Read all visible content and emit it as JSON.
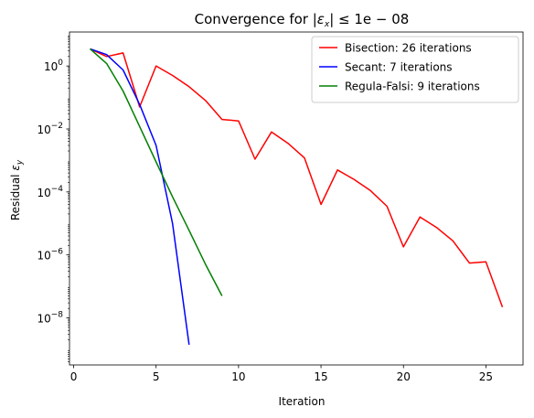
{
  "chart_data": {
    "type": "line",
    "title_parts": [
      "Convergence for |",
      "ε",
      "x",
      "| ≤ 1e − 08"
    ],
    "xlabel": "Iteration",
    "ylabel_parts": [
      "Residual ",
      "ε",
      "y"
    ],
    "x_scale": "linear",
    "y_scale": "log",
    "xlim": [
      -0.25,
      27.25
    ],
    "ylim": [
      3.2e-10,
      12
    ],
    "x_ticks": [
      0,
      5,
      10,
      15,
      20,
      25
    ],
    "y_ticks": [
      {
        "value": 1e-08,
        "base": "10",
        "exp": "−8"
      },
      {
        "value": 1e-06,
        "base": "10",
        "exp": "−6"
      },
      {
        "value": 0.0001,
        "base": "10",
        "exp": "−4"
      },
      {
        "value": 0.01,
        "base": "10",
        "exp": "−2"
      },
      {
        "value": 1,
        "base": "10",
        "exp": "0"
      }
    ],
    "grid": false,
    "legend_position": "top-right",
    "series": [
      {
        "name": "Bisection: 26 iterations",
        "color": "#ff0000",
        "x": [
          1,
          2,
          3,
          4,
          5,
          6,
          7,
          8,
          9,
          10,
          11,
          12,
          13,
          14,
          15,
          16,
          17,
          18,
          19,
          20,
          21,
          22,
          23,
          24,
          25,
          26
        ],
        "y": [
          3.5,
          2.0,
          2.6,
          0.05,
          1.0,
          0.5,
          0.22,
          0.08,
          0.02,
          0.018,
          0.0011,
          0.008,
          0.0035,
          0.0012,
          4e-05,
          0.0005,
          0.00025,
          0.00011,
          3.5e-05,
          1.8e-06,
          1.6e-05,
          7.5e-06,
          2.8e-06,
          5.5e-07,
          6e-07,
          2.2e-08
        ]
      },
      {
        "name": "Secant: 7 iterations",
        "color": "#0000ff",
        "x": [
          1,
          2,
          3,
          4,
          5,
          6,
          7
        ],
        "y": [
          3.5,
          2.3,
          0.75,
          0.06,
          0.003,
          1e-05,
          1.4e-09
        ]
      },
      {
        "name": "Regula-Falsi: 9 iterations",
        "color": "#008000",
        "x": [
          1,
          2,
          3,
          4,
          5,
          6,
          7,
          8,
          9
        ],
        "y": [
          3.5,
          1.2,
          0.16,
          0.012,
          0.0009,
          7e-05,
          6e-06,
          5e-07,
          5e-08
        ]
      }
    ]
  }
}
